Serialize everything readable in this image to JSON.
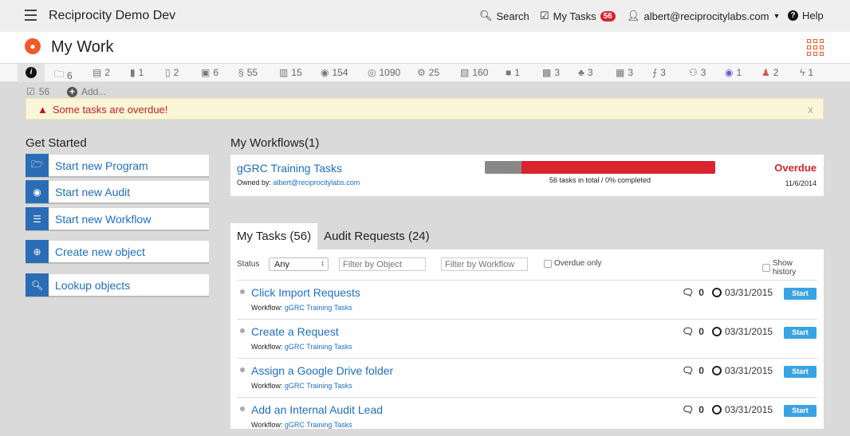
{
  "topbar": {
    "title": "Reciprocity Demo Dev",
    "search": "Search",
    "my_tasks": "My Tasks",
    "my_tasks_count": "56",
    "user": "albert@reciprocitylabs.com",
    "help": "Help"
  },
  "header": {
    "title": "My Work"
  },
  "object_bar": {
    "items": [
      {
        "icon": "folder-icon",
        "count": "6"
      },
      {
        "icon": "document-icon",
        "count": "2"
      },
      {
        "icon": "book-icon",
        "count": "1"
      },
      {
        "icon": "file-icon",
        "count": "2"
      },
      {
        "icon": "file-check-icon",
        "count": "6"
      },
      {
        "icon": "section-icon",
        "glyph": "§",
        "count": "55"
      },
      {
        "icon": "file-dollar-icon",
        "count": "15"
      },
      {
        "icon": "target-icon",
        "count": "154"
      },
      {
        "icon": "webcam-icon",
        "count": "1090"
      },
      {
        "icon": "gears-icon",
        "count": "25"
      },
      {
        "icon": "file-link-icon",
        "count": "160"
      },
      {
        "icon": "floppy-icon",
        "count": "1"
      },
      {
        "icon": "box-icon",
        "count": "3"
      },
      {
        "icon": "sign-icon",
        "count": "3"
      },
      {
        "icon": "building-icon",
        "count": "3"
      },
      {
        "icon": "cart-icon",
        "count": "3"
      },
      {
        "icon": "people-icon",
        "count": "3"
      },
      {
        "icon": "eye-icon",
        "count": "1"
      },
      {
        "icon": "person-icon",
        "count": "2"
      },
      {
        "icon": "bolt-icon",
        "count": "1"
      }
    ],
    "tasks_count": "56",
    "add": "Add..."
  },
  "alert": {
    "message": "Some tasks are overdue!",
    "close": "x"
  },
  "get_started": {
    "title": "Get Started",
    "items": [
      {
        "label": "Start new Program",
        "icon": "folder-icon"
      },
      {
        "label": "Start new Audit",
        "icon": "eye-icon"
      },
      {
        "label": "Start new Workflow",
        "icon": "list-icon"
      },
      {
        "label": "Create new object",
        "icon": "plus-circle-icon"
      },
      {
        "label": "Lookup objects",
        "icon": "search-icon"
      }
    ]
  },
  "workflows": {
    "title": "My Workflows(1)",
    "items": [
      {
        "name": "gGRC Training Tasks",
        "owner_label": "Owned by:",
        "owner": "albert@reciprocitylabs.com",
        "progress_text": "56 tasks in total / 0% completed",
        "status": "Overdue",
        "date": "11/6/2014",
        "segments": [
          {
            "color": "#888888",
            "fraction": 0.16
          },
          {
            "color": "#d9232e",
            "fraction": 0.84
          }
        ]
      }
    ]
  },
  "tabs": [
    {
      "label": "My Tasks (56)",
      "active": true
    },
    {
      "label": "Audit Requests (24)",
      "active": false
    }
  ],
  "filters": {
    "status_label": "Status",
    "status_value": "Any",
    "object_placeholder": "Filter by Object",
    "workflow_placeholder": "Filter by Workflow",
    "overdue_only": "Overdue only",
    "show_history": "Show history"
  },
  "tasks": [
    {
      "name": "Click Import Requests",
      "workflow_label": "Workflow:",
      "workflow": "gGRC Training Tasks",
      "comments": "0",
      "date": "03/31/2015",
      "action": "Start"
    },
    {
      "name": "Create a Request",
      "workflow_label": "Workflow:",
      "workflow": "gGRC Training Tasks",
      "comments": "0",
      "date": "03/31/2015",
      "action": "Start"
    },
    {
      "name": "Assign a Google Drive folder",
      "workflow_label": "Workflow:",
      "workflow": "gGRC Training Tasks",
      "comments": "0",
      "date": "03/31/2015",
      "action": "Start"
    },
    {
      "name": "Add an Internal Audit Lead",
      "workflow_label": "Workflow:",
      "workflow": "gGRC Training Tasks",
      "comments": "0",
      "date": "03/31/2015",
      "action": "Start"
    }
  ]
}
